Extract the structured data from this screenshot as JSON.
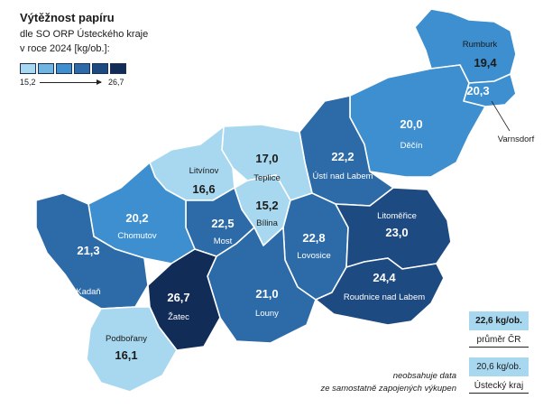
{
  "legend": {
    "title": "Výtěžnost papíru",
    "subtitle_line1": "dle SO ORP Ústeckého kraje",
    "subtitle_line2": "v roce 2024 [kg/ob.]:",
    "min": "15,2",
    "max": "26,7",
    "scale_colors": [
      "#a8d8f0",
      "#6db6e4",
      "#3d8fcf",
      "#2c6aa8",
      "#1e4a82",
      "#122c58"
    ]
  },
  "regions": [
    {
      "id": "rumburk",
      "name": "Rumburk",
      "value": "19,4",
      "num": 19.4
    },
    {
      "id": "varnsdorf",
      "name": "Varnsdorf",
      "value": "20,3",
      "num": 20.3
    },
    {
      "id": "decin",
      "name": "Děčín",
      "value": "20,0",
      "num": 20.0
    },
    {
      "id": "usti",
      "name": "Ústí nad Labem",
      "value": "22,2",
      "num": 22.2
    },
    {
      "id": "teplice",
      "name": "Teplice",
      "value": "17,0",
      "num": 17.0
    },
    {
      "id": "litvinov",
      "name": "Litvínov",
      "value": "16,6",
      "num": 16.6
    },
    {
      "id": "bilina",
      "name": "Bílina",
      "value": "15,2",
      "num": 15.2
    },
    {
      "id": "most",
      "name": "Most",
      "value": "22,5",
      "num": 22.5
    },
    {
      "id": "chomutov",
      "name": "Chomutov",
      "value": "20,2",
      "num": 20.2
    },
    {
      "id": "kadan",
      "name": "Kadaň",
      "value": "21,3",
      "num": 21.3
    },
    {
      "id": "lovosice",
      "name": "Lovosice",
      "value": "22,8",
      "num": 22.8
    },
    {
      "id": "litomerice",
      "name": "Litoměřice",
      "value": "23,0",
      "num": 23.0
    },
    {
      "id": "roudnice",
      "name": "Roudnice nad Labem",
      "value": "24,4",
      "num": 24.4
    },
    {
      "id": "louny",
      "name": "Louny",
      "value": "21,0",
      "num": 21.0
    },
    {
      "id": "zatec",
      "name": "Žatec",
      "value": "26,7",
      "num": 26.7
    },
    {
      "id": "podborany",
      "name": "Podbořany",
      "value": "16,1",
      "num": 16.1
    }
  ],
  "benchmarks": {
    "cr_value": "22,6 kg/ob.",
    "cr_label": "průměr ČR",
    "kraj_value": "20,6 kg/ob.",
    "kraj_label": "Ústecký kraj"
  },
  "note": {
    "line1": "neobsahuje data",
    "line2": "ze samostatně zapojených výkupen"
  }
}
